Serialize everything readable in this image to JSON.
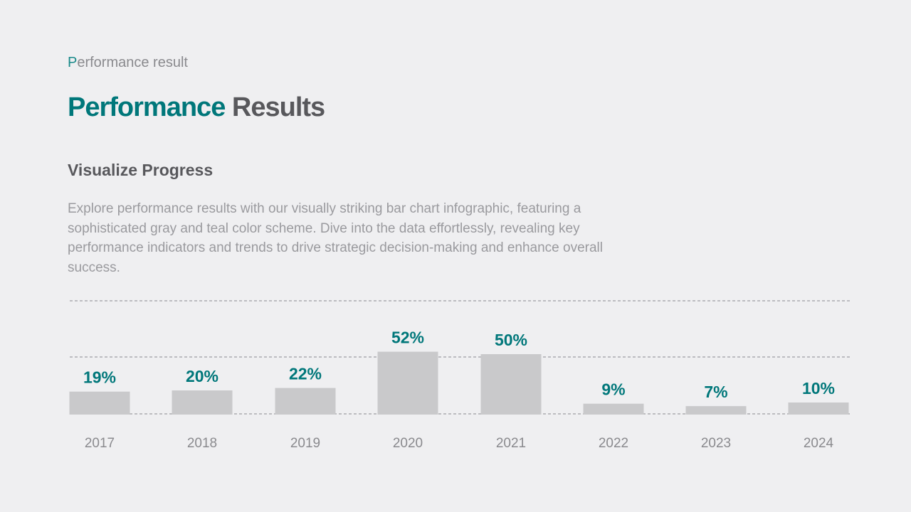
{
  "eyebrow": {
    "first_letter": "P",
    "rest": "erformance result"
  },
  "title": {
    "part1": "Performance",
    "part2": "Results"
  },
  "subtitle": "Visualize Progress",
  "description": "Explore performance results with our visually striking bar chart infographic, featuring a sophisticated gray and teal color scheme. Dive into the data effortlessly, revealing key performance indicators and trends to drive strategic decision-making and enhance overall success.",
  "colors": {
    "accent": "#00777a",
    "bar": "#c9c9cb",
    "background": "#efeff1",
    "gridline": "#8a8a8e",
    "tick_label": "#8a8a8e"
  },
  "chart_data": {
    "type": "bar",
    "title": "",
    "xlabel": "",
    "ylabel": "",
    "categories": [
      "2017",
      "2018",
      "2019",
      "2020",
      "2021",
      "2022",
      "2023",
      "2024"
    ],
    "values": [
      19,
      20,
      22,
      52,
      50,
      9,
      7,
      10
    ],
    "data_labels": [
      "19%",
      "20%",
      "22%",
      "52%",
      "50%",
      "9%",
      "7%",
      "10%"
    ],
    "unit": "%",
    "grid": "dashed horizontal lines",
    "legend": "none"
  }
}
